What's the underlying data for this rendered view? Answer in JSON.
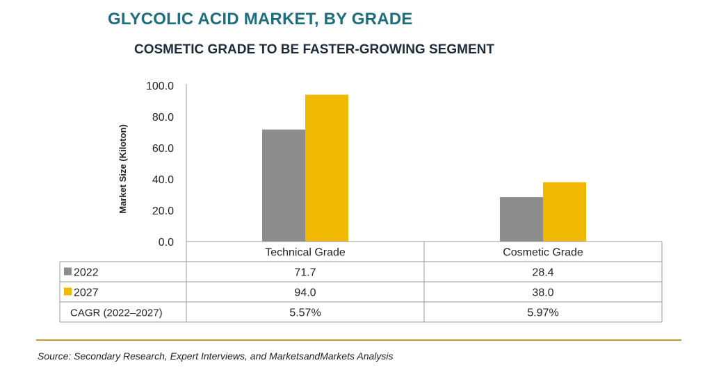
{
  "header": {
    "title": "GLYCOLIC ACID MARKET, BY GRADE",
    "subtitle": "COSMETIC GRADE TO BE FASTER-GROWING SEGMENT"
  },
  "chart_data": {
    "type": "bar",
    "title": "GLYCOLIC ACID MARKET, BY GRADE",
    "subtitle": "COSMETIC GRADE TO BE FASTER-GROWING SEGMENT",
    "xlabel": "",
    "ylabel": "Market Size (Kiloton)",
    "ylim": [
      0,
      100
    ],
    "yticks": [
      "0.0",
      "20.0",
      "40.0",
      "60.0",
      "80.0",
      "100.0"
    ],
    "categories": [
      "Technical Grade",
      "Cosmetic Grade"
    ],
    "series": [
      {
        "name": "2022",
        "values": [
          71.7,
          28.4
        ],
        "labels": [
          "71.7",
          "28.4"
        ],
        "color": "#8c8c8c"
      },
      {
        "name": "2027",
        "values": [
          94.0,
          38.0
        ],
        "labels": [
          "94.0",
          "38.0"
        ],
        "color": "#f0b800"
      }
    ],
    "extra_rows": [
      {
        "name": "CAGR (2022–2027)",
        "labels": [
          "5.57%",
          "5.97%"
        ]
      }
    ],
    "grid": false,
    "legend": "data-table"
  },
  "footer": {
    "source": "Source: Secondary Research, Expert Interviews, and MarketsandMarkets Analysis"
  }
}
